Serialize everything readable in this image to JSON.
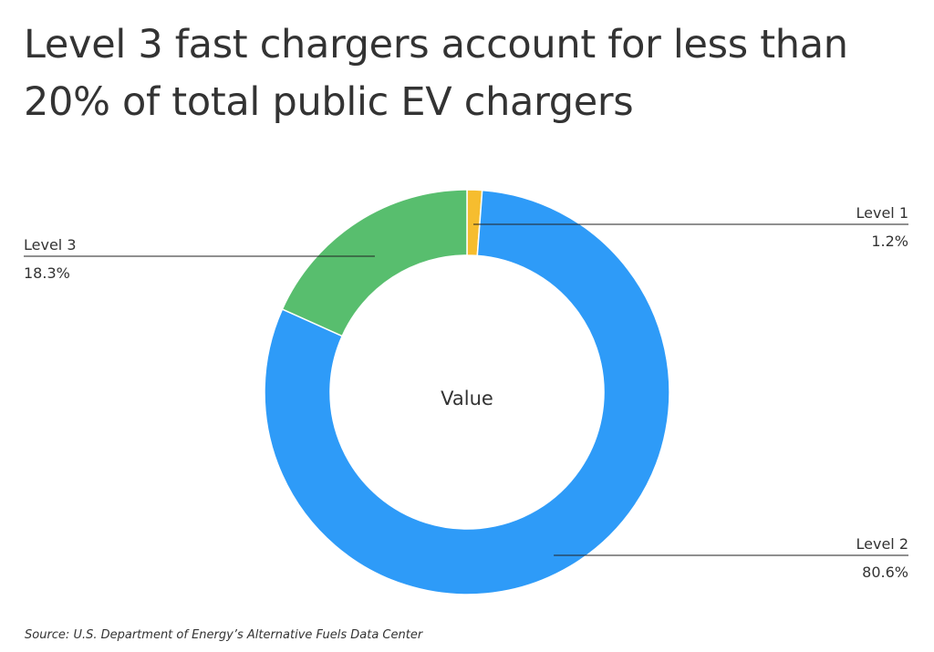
{
  "title": "Level 3 fast chargers account for less than 20% of total public EV chargers",
  "source": "Source:  U.S. Department of Energy’s Alternative Fuels Data Center",
  "chart_data": {
    "type": "pie",
    "variant": "donut",
    "center_label": "Value",
    "categories": [
      "Level 1",
      "Level 2",
      "Level 3"
    ],
    "values": [
      1.2,
      80.6,
      18.3
    ],
    "value_labels": [
      "1.2%",
      "80.6%",
      "18.3%"
    ],
    "colors": [
      "#F6BD2F",
      "#2E9BF8",
      "#58BE6E"
    ],
    "legend": "none"
  }
}
